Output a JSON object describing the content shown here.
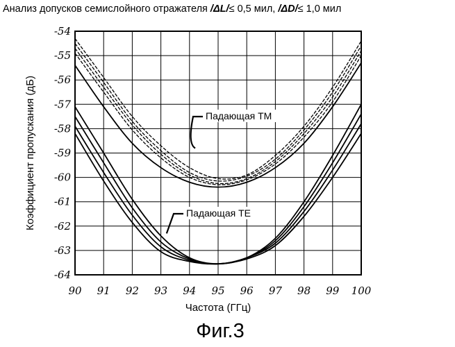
{
  "title": {
    "prefix": "Анализ допусков семислойного отражателя",
    "cond1_sym": "/ΔL/",
    "cond1_rest": "≤ 0,5 мил,",
    "cond2_sym": "/ΔD/",
    "cond2_rest": "≤ 1,0 мил"
  },
  "figure_caption": "Фиг.3",
  "chart_data": {
    "type": "line",
    "xlabel": "Частота (ГГц)",
    "ylabel": "Коэффициент пропускания (дБ)",
    "xlim": [
      90,
      100
    ],
    "ylim": [
      -64,
      -54
    ],
    "xticks": [
      "90",
      "91",
      "92",
      "93",
      "94",
      "95",
      "96",
      "97",
      "98",
      "99",
      "100"
    ],
    "yticks": [
      "-54",
      "-55",
      "-56",
      "-57",
      "-58",
      "-59",
      "-60",
      "-61",
      "-62",
      "-63",
      "-64"
    ],
    "grid": true,
    "annotations": [
      {
        "text": "Падающая ТМ",
        "target_series": "TM",
        "point_to": [
          94.2,
          -58.8
        ]
      },
      {
        "text": "Падающая ТЕ",
        "target_series": "TE",
        "point_to": [
          93.2,
          -62.3
        ]
      }
    ],
    "series": [
      {
        "name": "TM",
        "style": "dashed",
        "x": [
          90,
          91,
          92,
          93,
          94,
          95,
          96,
          97,
          98,
          99,
          100
        ],
        "y": [
          -54.3,
          -55.9,
          -57.5,
          -58.7,
          -59.6,
          -60.05,
          -59.9,
          -59.1,
          -57.9,
          -56.3,
          -54.4
        ]
      },
      {
        "name": "TM",
        "style": "dashed",
        "x": [
          90,
          91,
          92,
          93,
          94,
          95,
          96,
          97,
          98,
          99,
          100
        ],
        "y": [
          -54.5,
          -56.1,
          -57.7,
          -58.9,
          -59.8,
          -60.15,
          -59.95,
          -59.25,
          -58.05,
          -56.5,
          -54.6
        ]
      },
      {
        "name": "TM",
        "style": "dashed",
        "x": [
          90,
          91,
          92,
          93,
          94,
          95,
          96,
          97,
          98,
          99,
          100
        ],
        "y": [
          -54.7,
          -56.3,
          -57.85,
          -59.05,
          -59.9,
          -60.25,
          -60.05,
          -59.35,
          -58.2,
          -56.7,
          -54.8
        ]
      },
      {
        "name": "TM",
        "style": "dashed",
        "x": [
          90,
          91,
          92,
          93,
          94,
          95,
          96,
          97,
          98,
          99,
          100
        ],
        "y": [
          -54.9,
          -56.5,
          -58.05,
          -59.2,
          -60.0,
          -60.3,
          -60.1,
          -59.45,
          -58.35,
          -56.9,
          -55.0
        ]
      },
      {
        "name": "TM",
        "style": "solid",
        "x": [
          90,
          91,
          92,
          93,
          94,
          95,
          96,
          97,
          98,
          99,
          100
        ],
        "y": [
          -55.4,
          -57.1,
          -58.6,
          -59.6,
          -60.2,
          -60.4,
          -60.2,
          -59.6,
          -58.6,
          -57.1,
          -55.3
        ]
      },
      {
        "name": "TE",
        "style": "solid",
        "x": [
          90,
          91,
          92,
          93,
          94,
          95,
          96,
          97,
          98,
          99,
          100
        ],
        "y": [
          -57.1,
          -59.0,
          -60.9,
          -62.4,
          -63.3,
          -63.55,
          -63.3,
          -62.5,
          -61.0,
          -59.1,
          -57.0
        ]
      },
      {
        "name": "TE",
        "style": "solid",
        "x": [
          90,
          91,
          92,
          93,
          94,
          95,
          96,
          97,
          98,
          99,
          100
        ],
        "y": [
          -57.5,
          -59.4,
          -61.25,
          -62.65,
          -63.35,
          -63.55,
          -63.3,
          -62.6,
          -61.2,
          -59.4,
          -57.4
        ]
      },
      {
        "name": "TE",
        "style": "solid",
        "x": [
          90,
          91,
          92,
          93,
          94,
          95,
          96,
          97,
          98,
          99,
          100
        ],
        "y": [
          -57.9,
          -59.8,
          -61.55,
          -62.85,
          -63.4,
          -63.55,
          -63.3,
          -62.7,
          -61.4,
          -59.7,
          -57.8
        ]
      },
      {
        "name": "TE",
        "style": "solid",
        "x": [
          90,
          91,
          92,
          93,
          94,
          95,
          96,
          97,
          98,
          99,
          100
        ],
        "y": [
          -58.2,
          -60.15,
          -61.85,
          -63.05,
          -63.45,
          -63.55,
          -63.35,
          -62.8,
          -61.6,
          -60.0,
          -58.2
        ]
      }
    ]
  }
}
